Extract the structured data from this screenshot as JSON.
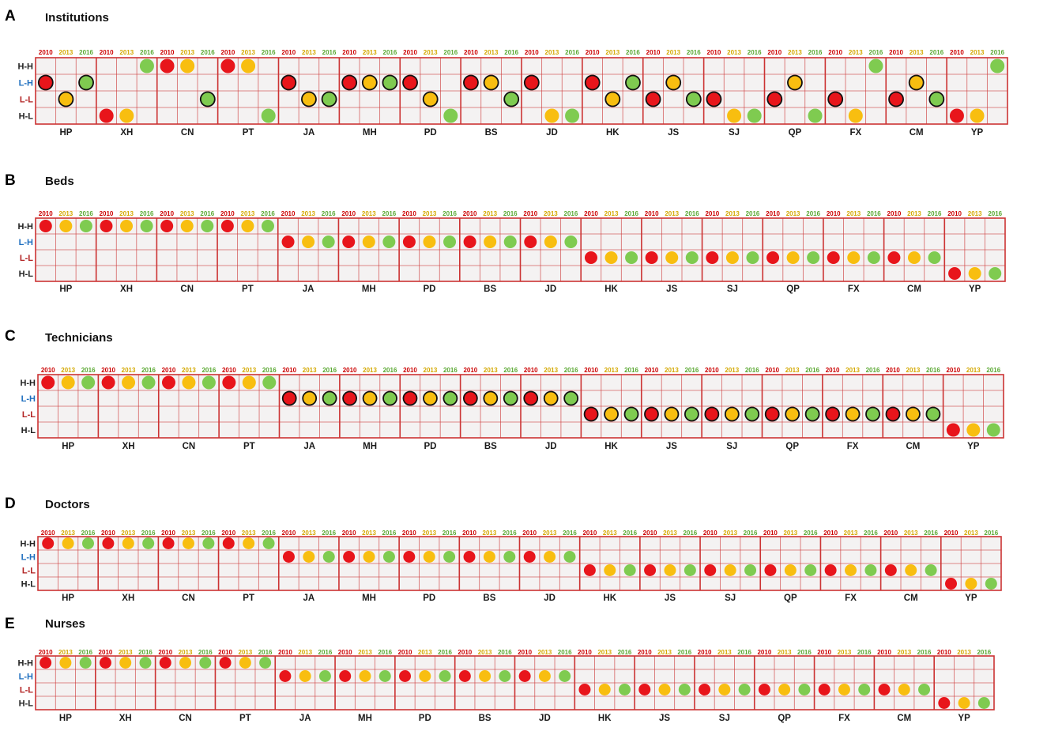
{
  "colors": {
    "grid": "#cc3333",
    "cell_bg": "#f4f2f2",
    "year_2010": "#cc0000",
    "year_2013": "#d4a800",
    "year_2016": "#5aa832",
    "dot_red": "#e8151b",
    "dot_yellow": "#f8be10",
    "dot_green": "#7fcb50",
    "label_HH": "#222222",
    "label_LH": "#1f6fbf",
    "label_LL": "#b22222",
    "label_HL": "#222222"
  },
  "chart_data": {
    "type": "categorical-dot-matrix",
    "years": [
      "2010",
      "2013",
      "2016"
    ],
    "rows": [
      "H-H",
      "L-H",
      "L-L",
      "H-L"
    ],
    "districts": [
      "HP",
      "XH",
      "CN",
      "PT",
      "JA",
      "MH",
      "PD",
      "BS",
      "JD",
      "HK",
      "JS",
      "SJ",
      "QP",
      "FX",
      "CM",
      "YP"
    ],
    "panels": [
      {
        "letter": "A",
        "title": "Institutions",
        "outlined": true,
        "values": [
          [
            "L-H",
            "L-L",
            "L-H"
          ],
          [
            "H-L",
            "H-L",
            "H-H"
          ],
          [
            "H-H",
            "H-H",
            "L-L"
          ],
          [
            "H-H",
            "H-H",
            "H-L"
          ],
          [
            "L-H",
            "L-L",
            "L-L"
          ],
          [
            "L-H",
            "L-H",
            "L-H"
          ],
          [
            "L-H",
            "L-L",
            "H-L"
          ],
          [
            "L-H",
            "L-H",
            "L-L"
          ],
          [
            "L-H",
            "H-L",
            "H-L"
          ],
          [
            "L-H",
            "L-L",
            "L-H"
          ],
          [
            "L-L",
            "L-H",
            "L-L"
          ],
          [
            "L-L",
            "H-L",
            "H-L"
          ],
          [
            "L-L",
            "L-H",
            "H-L"
          ],
          [
            "L-L",
            "H-L",
            "H-H"
          ],
          [
            "L-L",
            "L-H",
            "L-L"
          ],
          [
            "H-L",
            "H-L",
            "H-H"
          ]
        ]
      },
      {
        "letter": "B",
        "title": "Beds",
        "outlined": false,
        "values": [
          [
            "H-H",
            "H-H",
            "H-H"
          ],
          [
            "H-H",
            "H-H",
            "H-H"
          ],
          [
            "H-H",
            "H-H",
            "H-H"
          ],
          [
            "H-H",
            "H-H",
            "H-H"
          ],
          [
            "L-H",
            "L-H",
            "L-H"
          ],
          [
            "L-H",
            "L-H",
            "L-H"
          ],
          [
            "L-H",
            "L-H",
            "L-H"
          ],
          [
            "L-H",
            "L-H",
            "L-H"
          ],
          [
            "L-H",
            "L-H",
            "L-H"
          ],
          [
            "L-L",
            "L-L",
            "L-L"
          ],
          [
            "L-L",
            "L-L",
            "L-L"
          ],
          [
            "L-L",
            "L-L",
            "L-L"
          ],
          [
            "L-L",
            "L-L",
            "L-L"
          ],
          [
            "L-L",
            "L-L",
            "L-L"
          ],
          [
            "L-L",
            "L-L",
            "L-L"
          ],
          [
            "H-L",
            "H-L",
            "H-L"
          ]
        ]
      },
      {
        "letter": "C",
        "title": "Technicians",
        "outlined": "partial",
        "values": [
          [
            "H-H",
            "H-H",
            "H-H"
          ],
          [
            "H-H",
            "H-H",
            "H-H"
          ],
          [
            "H-H",
            "H-H",
            "H-H"
          ],
          [
            "H-H",
            "H-H",
            "H-H"
          ],
          [
            "L-H",
            "L-H",
            "L-H"
          ],
          [
            "L-H",
            "L-H",
            "L-H"
          ],
          [
            "L-H",
            "L-H",
            "L-H"
          ],
          [
            "L-H",
            "L-H",
            "L-H"
          ],
          [
            "L-H",
            "L-H",
            "L-H"
          ],
          [
            "L-L",
            "L-L",
            "L-L"
          ],
          [
            "L-L",
            "L-L",
            "L-L"
          ],
          [
            "L-L",
            "L-L",
            "L-L"
          ],
          [
            "L-L",
            "L-L",
            "L-L"
          ],
          [
            "L-L",
            "L-L",
            "L-L"
          ],
          [
            "L-L",
            "L-L",
            "L-L"
          ],
          [
            "H-L",
            "H-L",
            "H-L"
          ]
        ]
      },
      {
        "letter": "D",
        "title": "Doctors",
        "outlined": false,
        "values": [
          [
            "H-H",
            "H-H",
            "H-H"
          ],
          [
            "H-H",
            "H-H",
            "H-H"
          ],
          [
            "H-H",
            "H-H",
            "H-H"
          ],
          [
            "H-H",
            "H-H",
            "H-H"
          ],
          [
            "L-H",
            "L-H",
            "L-H"
          ],
          [
            "L-H",
            "L-H",
            "L-H"
          ],
          [
            "L-H",
            "L-H",
            "L-H"
          ],
          [
            "L-H",
            "L-H",
            "L-H"
          ],
          [
            "L-H",
            "L-H",
            "L-H"
          ],
          [
            "L-L",
            "L-L",
            "L-L"
          ],
          [
            "L-L",
            "L-L",
            "L-L"
          ],
          [
            "L-L",
            "L-L",
            "L-L"
          ],
          [
            "L-L",
            "L-L",
            "L-L"
          ],
          [
            "L-L",
            "L-L",
            "L-L"
          ],
          [
            "L-L",
            "L-L",
            "L-L"
          ],
          [
            "H-L",
            "H-L",
            "H-L"
          ]
        ]
      },
      {
        "letter": "E",
        "title": "Nurses",
        "outlined": false,
        "values": [
          [
            "H-H",
            "H-H",
            "H-H"
          ],
          [
            "H-H",
            "H-H",
            "H-H"
          ],
          [
            "H-H",
            "H-H",
            "H-H"
          ],
          [
            "H-H",
            "H-H",
            "H-H"
          ],
          [
            "L-H",
            "L-H",
            "L-H"
          ],
          [
            "L-H",
            "L-H",
            "L-H"
          ],
          [
            "L-H",
            "L-H",
            "L-H"
          ],
          [
            "L-H",
            "L-H",
            "L-H"
          ],
          [
            "L-H",
            "L-H",
            "L-H"
          ],
          [
            "L-L",
            "L-L",
            "L-L"
          ],
          [
            "L-L",
            "L-L",
            "L-L"
          ],
          [
            "L-L",
            "L-L",
            "L-L"
          ],
          [
            "L-L",
            "L-L",
            "L-L"
          ],
          [
            "L-L",
            "L-L",
            "L-L"
          ],
          [
            "L-L",
            "L-L",
            "L-L"
          ],
          [
            "H-L",
            "H-L",
            "H-L"
          ]
        ]
      }
    ]
  }
}
